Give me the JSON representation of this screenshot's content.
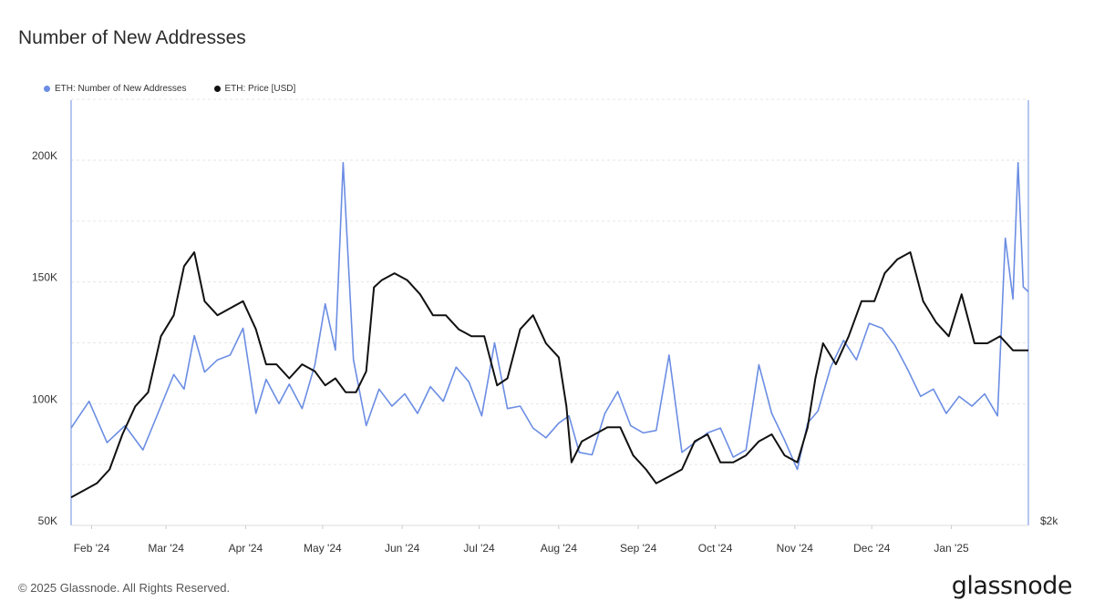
{
  "title": "Number of New Addresses",
  "footer": {
    "copyright": "© 2025 Glassnode. All Rights Reserved.",
    "logo": "glassnode"
  },
  "chart_data": {
    "type": "line",
    "title": "Number of New Addresses",
    "legend_position": "top-left",
    "grid": true,
    "x_ticks": [
      "Feb '24",
      "Mar '24",
      "Apr '24",
      "May '24",
      "Jun '24",
      "Jul '24",
      "Aug '24",
      "Sep '24",
      "Oct '24",
      "Nov '24",
      "Dec '24",
      "Jan '25"
    ],
    "y_left": {
      "ticks": [
        "50K",
        "100K",
        "150K",
        "200K"
      ],
      "range": [
        50000,
        225000
      ]
    },
    "y_right": {
      "ticks": [
        "$2k"
      ]
    },
    "series": [
      {
        "name": "ETH: Number of New Addresses",
        "color": "#6b8de3",
        "axis": "left",
        "x": [
          "2024-01-24",
          "2024-01-31",
          "2024-02-07",
          "2024-02-14",
          "2024-02-21",
          "2024-02-28",
          "2024-03-04",
          "2024-03-08",
          "2024-03-12",
          "2024-03-16",
          "2024-03-21",
          "2024-03-26",
          "2024-03-31",
          "2024-04-05",
          "2024-04-09",
          "2024-04-14",
          "2024-04-18",
          "2024-04-23",
          "2024-04-28",
          "2024-05-02",
          "2024-05-06",
          "2024-05-09",
          "2024-05-13",
          "2024-05-18",
          "2024-05-23",
          "2024-05-28",
          "2024-06-02",
          "2024-06-07",
          "2024-06-12",
          "2024-06-17",
          "2024-06-22",
          "2024-06-27",
          "2024-07-02",
          "2024-07-07",
          "2024-07-12",
          "2024-07-17",
          "2024-07-22",
          "2024-07-27",
          "2024-08-01",
          "2024-08-05",
          "2024-08-09",
          "2024-08-14",
          "2024-08-19",
          "2024-08-24",
          "2024-08-29",
          "2024-09-03",
          "2024-09-08",
          "2024-09-13",
          "2024-09-18",
          "2024-09-23",
          "2024-09-28",
          "2024-10-03",
          "2024-10-08",
          "2024-10-13",
          "2024-10-18",
          "2024-10-23",
          "2024-10-28",
          "2024-11-02",
          "2024-11-06",
          "2024-11-10",
          "2024-11-15",
          "2024-11-20",
          "2024-11-25",
          "2024-11-30",
          "2024-12-05",
          "2024-12-10",
          "2024-12-15",
          "2024-12-20",
          "2024-12-25",
          "2024-12-30",
          "2025-01-04",
          "2025-01-09",
          "2025-01-14",
          "2025-01-19",
          "2025-01-22",
          "2025-01-25",
          "2025-01-27",
          "2025-01-29",
          "2025-01-31"
        ],
        "y": [
          90000,
          101000,
          84000,
          91000,
          81000,
          99000,
          112000,
          106000,
          128000,
          113000,
          118000,
          120000,
          131000,
          96000,
          110000,
          100000,
          108000,
          98000,
          116000,
          141000,
          122000,
          199000,
          118000,
          91000,
          106000,
          99000,
          104000,
          96000,
          107000,
          101000,
          115000,
          109000,
          95000,
          125000,
          98000,
          99000,
          90000,
          86000,
          92000,
          95000,
          80000,
          79000,
          96000,
          105000,
          91000,
          88000,
          89000,
          120000,
          80000,
          84000,
          88000,
          90000,
          78000,
          81000,
          116000,
          96000,
          85000,
          73000,
          92000,
          97000,
          115000,
          126000,
          118000,
          133000,
          131000,
          124000,
          114000,
          103000,
          106000,
          96000,
          103000,
          99000,
          104000,
          95000,
          168000,
          143000,
          199000,
          148000,
          146000
        ]
      },
      {
        "name": "ETH: Price [USD]",
        "color": "#111111",
        "axis": "right",
        "x": [
          "2024-01-24",
          "2024-01-29",
          "2024-02-03",
          "2024-02-08",
          "2024-02-13",
          "2024-02-18",
          "2024-02-23",
          "2024-02-28",
          "2024-03-04",
          "2024-03-08",
          "2024-03-12",
          "2024-03-16",
          "2024-03-21",
          "2024-03-26",
          "2024-03-31",
          "2024-04-05",
          "2024-04-09",
          "2024-04-13",
          "2024-04-18",
          "2024-04-23",
          "2024-04-28",
          "2024-05-02",
          "2024-05-06",
          "2024-05-10",
          "2024-05-14",
          "2024-05-18",
          "2024-05-21",
          "2024-05-24",
          "2024-05-29",
          "2024-06-03",
          "2024-06-08",
          "2024-06-13",
          "2024-06-18",
          "2024-06-23",
          "2024-06-28",
          "2024-07-03",
          "2024-07-08",
          "2024-07-12",
          "2024-07-17",
          "2024-07-22",
          "2024-07-27",
          "2024-08-01",
          "2024-08-04",
          "2024-08-06",
          "2024-08-10",
          "2024-08-15",
          "2024-08-20",
          "2024-08-25",
          "2024-08-30",
          "2024-09-04",
          "2024-09-08",
          "2024-09-13",
          "2024-09-18",
          "2024-09-23",
          "2024-09-28",
          "2024-10-03",
          "2024-10-08",
          "2024-10-13",
          "2024-10-18",
          "2024-10-23",
          "2024-10-28",
          "2024-11-02",
          "2024-11-06",
          "2024-11-09",
          "2024-11-12",
          "2024-11-17",
          "2024-11-22",
          "2024-11-27",
          "2024-12-02",
          "2024-12-06",
          "2024-12-11",
          "2024-12-16",
          "2024-12-21",
          "2024-12-26",
          "2024-12-31",
          "2025-01-05",
          "2025-01-10",
          "2025-01-15",
          "2025-01-20",
          "2025-01-25",
          "2025-01-31"
        ],
        "y": [
          2200,
          2250,
          2300,
          2400,
          2650,
          2850,
          2950,
          3350,
          3500,
          3850,
          3950,
          3600,
          3500,
          3550,
          3600,
          3400,
          3150,
          3150,
          3050,
          3150,
          3100,
          3000,
          3050,
          2950,
          2950,
          3100,
          3700,
          3750,
          3800,
          3750,
          3650,
          3500,
          3500,
          3400,
          3350,
          3350,
          3000,
          3050,
          3400,
          3500,
          3300,
          3200,
          2850,
          2450,
          2600,
          2650,
          2700,
          2700,
          2500,
          2400,
          2300,
          2350,
          2400,
          2600,
          2650,
          2450,
          2450,
          2500,
          2600,
          2650,
          2500,
          2450,
          2700,
          3050,
          3300,
          3150,
          3350,
          3600,
          3600,
          3800,
          3900,
          3950,
          3600,
          3450,
          3350,
          3650,
          3300,
          3300,
          3350,
          3250,
          3250
        ]
      }
    ]
  }
}
